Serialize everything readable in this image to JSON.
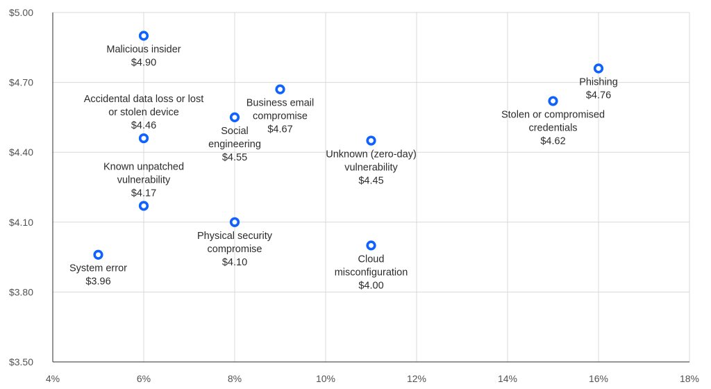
{
  "chart_data": {
    "type": "scatter",
    "title": "",
    "xlabel": "",
    "ylabel": "",
    "xlim": [
      4,
      18
    ],
    "ylim": [
      3.5,
      5.0
    ],
    "grid": true,
    "x_ticks": [
      4,
      6,
      8,
      10,
      12,
      14,
      16,
      18
    ],
    "x_tick_labels": [
      "4%",
      "6%",
      "8%",
      "10%",
      "12%",
      "14%",
      "16%",
      "18%"
    ],
    "y_ticks": [
      3.5,
      3.8,
      4.1,
      4.4,
      4.7,
      5.0
    ],
    "y_tick_labels": [
      "$3.50",
      "$3.80",
      "$4.10",
      "$4.40",
      "$4.70",
      "$5.00"
    ],
    "marker_color": "#0f62fe",
    "points": [
      {
        "x": 6,
        "y": 4.9,
        "label": [
          "Malicious insider",
          "$4.90"
        ],
        "label_pos": "below"
      },
      {
        "x": 6,
        "y": 4.46,
        "label": [
          "Accidental data loss or lost",
          "or stolen device",
          "$4.46"
        ],
        "label_pos": "above"
      },
      {
        "x": 6,
        "y": 4.17,
        "label": [
          "Known unpatched",
          "vulnerability",
          "$4.17"
        ],
        "label_pos": "above"
      },
      {
        "x": 5,
        "y": 3.96,
        "label": [
          "System error",
          "$3.96"
        ],
        "label_pos": "below"
      },
      {
        "x": 8,
        "y": 4.55,
        "label": [
          "Social",
          "engineering",
          "$4.55"
        ],
        "label_pos": "below"
      },
      {
        "x": 8,
        "y": 4.1,
        "label": [
          "Physical security",
          "compromise",
          "$4.10"
        ],
        "label_pos": "below"
      },
      {
        "x": 9,
        "y": 4.67,
        "label": [
          "Business email",
          "compromise",
          "$4.67"
        ],
        "label_pos": "below"
      },
      {
        "x": 11,
        "y": 4.45,
        "label": [
          "Unknown (zero-day)",
          "vulnerability",
          "$4.45"
        ],
        "label_pos": "below"
      },
      {
        "x": 11,
        "y": 4.0,
        "label": [
          "Cloud",
          "misconfiguration",
          "$4.00"
        ],
        "label_pos": "below"
      },
      {
        "x": 15,
        "y": 4.62,
        "label": [
          "Stolen or compromised",
          "credentials",
          "$4.62"
        ],
        "label_pos": "below"
      },
      {
        "x": 16,
        "y": 4.76,
        "label": [
          "Phishing",
          "$4.76"
        ],
        "label_pos": "below"
      }
    ]
  }
}
